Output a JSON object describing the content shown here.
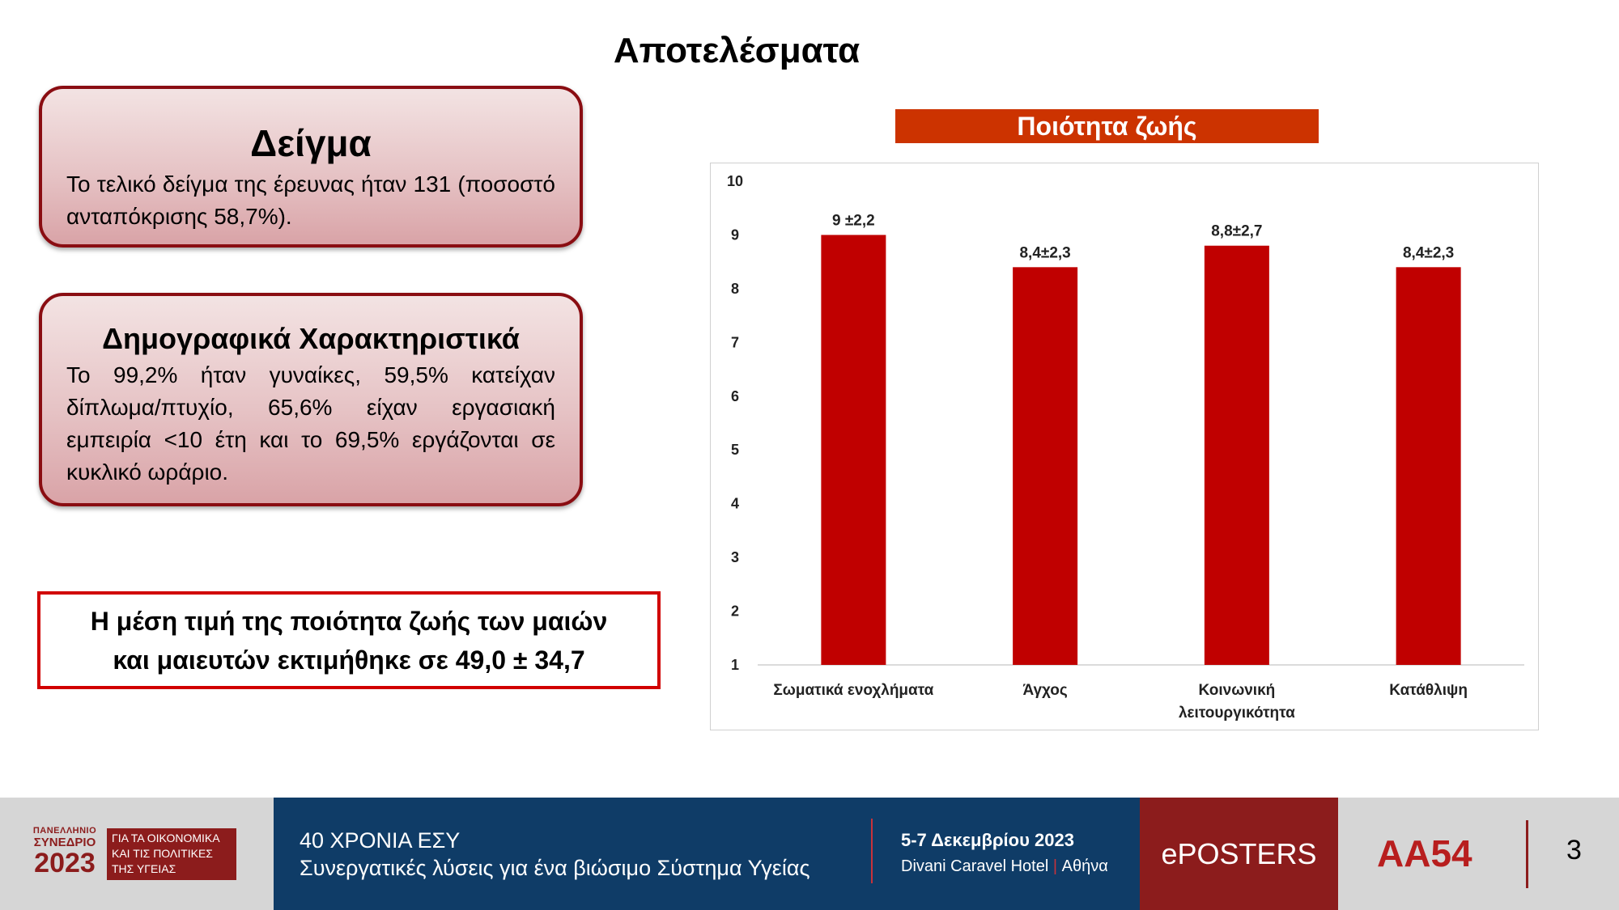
{
  "page_title": "Αποτελέσματα",
  "sample_card": {
    "heading": "Δείγμα",
    "text": "Το τελικό δείγμα της έρευνας ήταν 131 (ποσοστό ανταπόκρισης 58,7%)."
  },
  "demographics_card": {
    "heading": "Δημογραφικά Χαρακτηριστικά",
    "text": "Το 99,2% ήταν γυναίκες, 59,5% κατείχαν δίπλωμα/πτυχίο, 65,6% είχαν εργασιακή εμπειρία <10 έτη και το 69,5% εργάζονται σε κυκλικό ωράριο."
  },
  "mean_box": {
    "line1": "Η μέση τιμή της ποιότητα ζωής των μαιών",
    "line2": "και μαιευτών εκτιμήθηκε σε  49,0 ± 34,7"
  },
  "chart_data": {
    "type": "bar",
    "title": "Ποιότητα ζωής",
    "categories": [
      [
        "Σωματικά ενοχλήματα"
      ],
      [
        "Άγχος"
      ],
      [
        "Κοινωνική",
        "λειτουργικότητα"
      ],
      [
        "Κατάθλιψη"
      ]
    ],
    "values": [
      9,
      8.4,
      8.8,
      8.4
    ],
    "data_labels": [
      "9 ±2,2",
      "8,4±2,3",
      "8,8±2,7",
      "8,4±2,3"
    ],
    "ylim": [
      1,
      10
    ],
    "yticks": [
      1,
      2,
      3,
      4,
      5,
      6,
      7,
      8,
      9,
      10
    ],
    "bar_color": "#c00000",
    "grid": false
  },
  "footer": {
    "logo_line1": "ΠΑΝΕΛΛΗΝΙΟ",
    "logo_line2": "ΣΥΝΕΔΡΙΟ",
    "logo_year": "2023",
    "logo_box_line1": "ΓΙΑ ΤΑ ΟΙΚΟΝΟΜΙΚΑ",
    "logo_box_line2": "ΚΑΙ ΤΙΣ ΠΟΛΙΤΙΚΕΣ",
    "logo_box_line3": "ΤΗΣ ΥΓΕΙΑΣ",
    "line1": "40 ΧΡΟΝΙΑ ΕΣΥ",
    "line2": "Συνεργατικές λύσεις για ένα βιώσιμο Σύστημα Υγείας",
    "date": "5-7 Δεκεμβρίου 2023",
    "venue_hotel": "Divani Caravel Hotel",
    "venue_sep": "|",
    "venue_city": "Αθήνα",
    "eposters": "ePOSTERS",
    "code": "AA54",
    "page_number": "3"
  }
}
